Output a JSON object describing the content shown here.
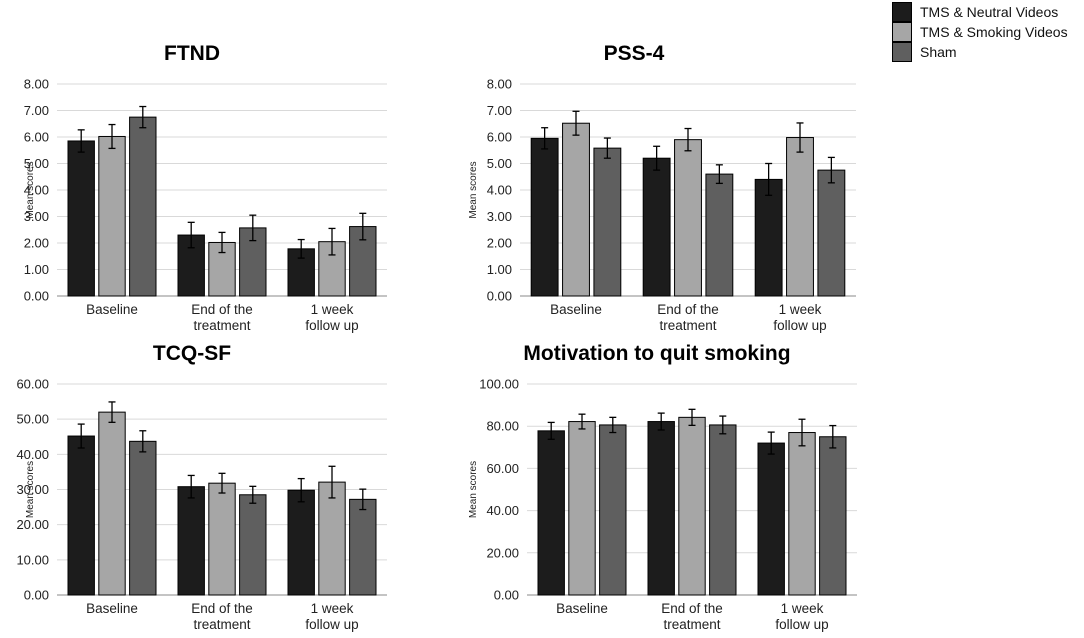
{
  "legend": {
    "items": [
      {
        "label": "TMS & Neutral Videos",
        "color": "#1c1c1c"
      },
      {
        "label": "TMS & Smoking Videos",
        "color": "#a6a6a6"
      },
      {
        "label": "Sham",
        "color": "#5f5f5f"
      }
    ]
  },
  "chart_data": [
    {
      "type": "bar",
      "title": "FTND",
      "ylabel": "Mean scores",
      "xlabel": "",
      "ylim": [
        0,
        8
      ],
      "ytick_step": 1,
      "ytick_labels": [
        "0.00",
        "1.00",
        "2.00",
        "3.00",
        "4.00",
        "5.00",
        "6.00",
        "7.00",
        "8.00"
      ],
      "categories": [
        [
          "Baseline"
        ],
        [
          "End of the",
          "treatment"
        ],
        [
          "1 week",
          "follow up"
        ]
      ],
      "series": [
        {
          "name": "TMS & Neutral Videos",
          "values": [
            5.85,
            2.3,
            1.78
          ],
          "errors": [
            0.42,
            0.48,
            0.35
          ]
        },
        {
          "name": "TMS & Smoking Videos",
          "values": [
            6.02,
            2.02,
            2.05
          ],
          "errors": [
            0.45,
            0.38,
            0.5
          ]
        },
        {
          "name": "Sham",
          "values": [
            6.75,
            2.57,
            2.62
          ],
          "errors": [
            0.4,
            0.48,
            0.5
          ]
        }
      ]
    },
    {
      "type": "bar",
      "title": "PSS-4",
      "ylabel": "Mean scores",
      "xlabel": "",
      "ylim": [
        0,
        8
      ],
      "ytick_step": 1,
      "ytick_labels": [
        "0.00",
        "1.00",
        "2.00",
        "3.00",
        "4.00",
        "5.00",
        "6.00",
        "7.00",
        "8.00"
      ],
      "categories": [
        [
          "Baseline"
        ],
        [
          "End of the",
          "treatment"
        ],
        [
          "1 week",
          "follow up"
        ]
      ],
      "series": [
        {
          "name": "TMS & Neutral Videos",
          "values": [
            5.95,
            5.2,
            4.4
          ],
          "errors": [
            0.4,
            0.45,
            0.6
          ]
        },
        {
          "name": "TMS & Smoking Videos",
          "values": [
            6.52,
            5.9,
            5.98
          ],
          "errors": [
            0.45,
            0.42,
            0.55
          ]
        },
        {
          "name": "Sham",
          "values": [
            5.58,
            4.6,
            4.75
          ],
          "errors": [
            0.38,
            0.35,
            0.48
          ]
        }
      ]
    },
    {
      "type": "bar",
      "title": "TCQ-SF",
      "ylabel": "Mean scores",
      "xlabel": "",
      "ylim": [
        0,
        60
      ],
      "ytick_step": 10,
      "ytick_labels": [
        "0.00",
        "10.00",
        "20.00",
        "30.00",
        "40.00",
        "50.00",
        "60.00"
      ],
      "categories": [
        [
          "Baseline"
        ],
        [
          "End of the",
          "treatment"
        ],
        [
          "1 week",
          "follow up"
        ]
      ],
      "series": [
        {
          "name": "TMS & Neutral Videos",
          "values": [
            45.2,
            30.8,
            29.8
          ],
          "errors": [
            3.4,
            3.2,
            3.3
          ]
        },
        {
          "name": "TMS & Smoking Videos",
          "values": [
            52.0,
            31.8,
            32.1
          ],
          "errors": [
            2.9,
            2.8,
            4.5
          ]
        },
        {
          "name": "Sham",
          "values": [
            43.7,
            28.5,
            27.2
          ],
          "errors": [
            3.0,
            2.4,
            2.9
          ]
        }
      ]
    },
    {
      "type": "bar",
      "title": "Motivation to quit smoking",
      "ylabel": "Mean scores",
      "xlabel": "",
      "ylim": [
        0,
        100
      ],
      "ytick_step": 20,
      "ytick_labels": [
        "0.00",
        "20.00",
        "40.00",
        "60.00",
        "80.00",
        "100.00"
      ],
      "categories": [
        [
          "Baseline"
        ],
        [
          "End of the",
          "treatment"
        ],
        [
          "1 week",
          "follow up"
        ]
      ],
      "series": [
        {
          "name": "TMS & Neutral Videos",
          "values": [
            77.8,
            82.2,
            72.0
          ],
          "errors": [
            4.0,
            4.0,
            5.2
          ]
        },
        {
          "name": "TMS & Smoking Videos",
          "values": [
            82.2,
            84.2,
            77.0
          ],
          "errors": [
            3.5,
            3.8,
            6.3
          ]
        },
        {
          "name": "Sham",
          "values": [
            80.6,
            80.6,
            75.0
          ],
          "errors": [
            3.6,
            4.2,
            5.3
          ]
        }
      ]
    }
  ]
}
